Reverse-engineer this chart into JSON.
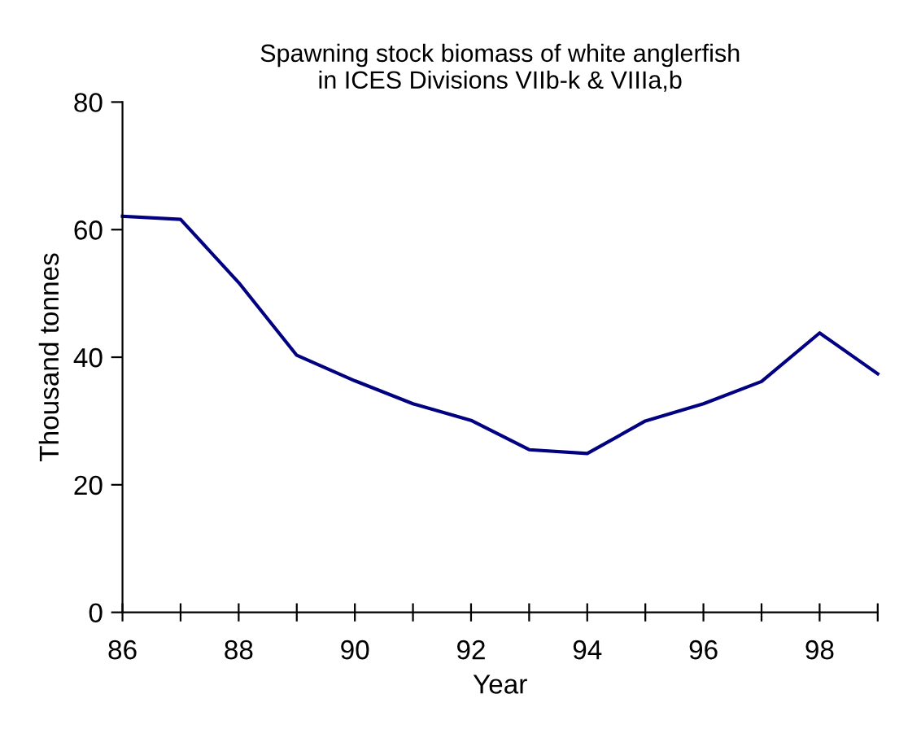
{
  "chart_data": {
    "type": "line",
    "title": "Spawning stock biomass of white anglerfish\nin ICES Divisions VIIb-k & VIIIa,b",
    "xlabel": "Year",
    "ylabel": "Thousand tonnes",
    "x": [
      86,
      87,
      88,
      89,
      90,
      91,
      92,
      93,
      94,
      95,
      96,
      97,
      98,
      99
    ],
    "series": [
      {
        "color": "#000080",
        "values": [
          62.1,
          61.6,
          51.7,
          40.3,
          36.3,
          32.7,
          30.1,
          25.5,
          24.9,
          30.0,
          32.7,
          36.2,
          43.8,
          37.4
        ]
      }
    ],
    "xlim": [
      86,
      99
    ],
    "ylim": [
      0,
      80
    ],
    "xticks": [
      86,
      {
        "value": 87,
        "label": null
      },
      88,
      {
        "value": 89,
        "label": null
      },
      90,
      {
        "value": 91,
        "label": null
      },
      92,
      {
        "value": 93,
        "label": null
      },
      94,
      {
        "value": 95,
        "label": null
      },
      96,
      {
        "value": 97,
        "label": null
      },
      98,
      {
        "value": 99,
        "label": null
      }
    ],
    "yticks": [
      0,
      20,
      40,
      60,
      80
    ],
    "grid": false,
    "marker": "none",
    "line_style": "solid"
  }
}
